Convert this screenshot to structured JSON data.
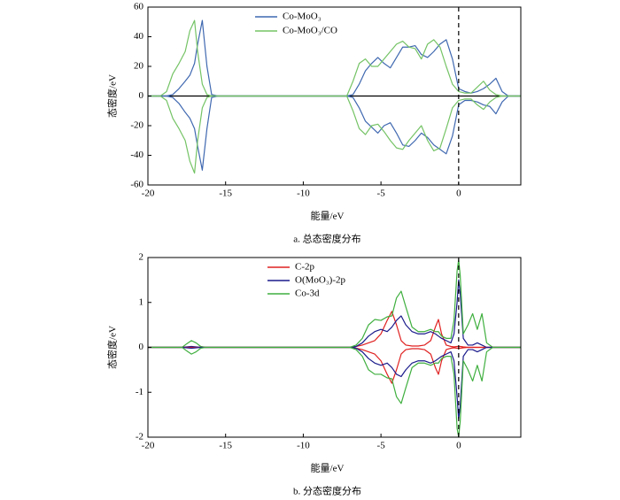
{
  "chart_data": [
    {
      "type": "line",
      "xlabel": "能量/eV",
      "ylabel": "态密度/eV",
      "caption": "a. 总态密度分布",
      "xlim": [
        -20,
        4
      ],
      "ylim": [
        -60,
        60
      ],
      "xticks": [
        -20,
        -15,
        -10,
        -5,
        0
      ],
      "yticks": [
        -60,
        -40,
        -20,
        0,
        20,
        40,
        60
      ],
      "vline": 0,
      "hline": 0,
      "x": [
        -20,
        -19.2,
        -18.8,
        -18.4,
        -18,
        -17.6,
        -17.3,
        -17,
        -16.8,
        -16.5,
        -16.2,
        -15.9,
        -15.5,
        -8,
        -7.2,
        -6.8,
        -6.4,
        -6,
        -5.6,
        -5.2,
        -4.8,
        -4.4,
        -4,
        -3.6,
        -3.2,
        -2.8,
        -2.4,
        -2,
        -1.6,
        -1.2,
        -0.8,
        -0.4,
        0,
        0.4,
        0.8,
        1.2,
        1.6,
        2,
        2.4,
        2.8,
        3.2,
        4
      ],
      "series": [
        {
          "name": "Co-MoO₃",
          "color": "#3f68b0",
          "values": [
            0,
            0,
            0,
            1,
            5,
            10,
            14,
            22,
            35,
            51,
            20,
            1,
            0,
            0,
            0,
            1,
            8,
            17,
            22,
            26,
            22,
            19,
            26,
            33,
            33,
            34,
            28,
            26,
            30,
            35,
            38,
            25,
            5,
            3,
            2,
            3,
            5,
            8,
            12,
            3,
            0,
            0
          ],
          "values_down": [
            0,
            0,
            0,
            -1,
            -5,
            -11,
            -15,
            -22,
            -34,
            -50,
            -22,
            -1,
            0,
            0,
            0,
            -1,
            -8,
            -17,
            -21,
            -25,
            -20,
            -18,
            -25,
            -33,
            -34,
            -30,
            -25,
            -28,
            -33,
            -36,
            -39,
            -27,
            -6,
            -3,
            -3,
            -4,
            -6,
            -7,
            -12,
            -4,
            0,
            0
          ]
        },
        {
          "name": "Co-MoO₃/CO",
          "color": "#74c365",
          "values": [
            0,
            0,
            3,
            15,
            22,
            30,
            44,
            51,
            30,
            8,
            1,
            0,
            0,
            0,
            0,
            10,
            22,
            25,
            20,
            20,
            25,
            30,
            35,
            37,
            33,
            32,
            25,
            35,
            38,
            33,
            20,
            8,
            3,
            2,
            2,
            6,
            10,
            4,
            1,
            0,
            0,
            0
          ],
          "values_down": [
            0,
            0,
            -3,
            -15,
            -22,
            -30,
            -44,
            -52,
            -30,
            -8,
            -1,
            0,
            0,
            0,
            0,
            -10,
            -22,
            -26,
            -20,
            -19,
            -24,
            -30,
            -35,
            -36,
            -30,
            -25,
            -20,
            -30,
            -37,
            -35,
            -22,
            -8,
            -3,
            -2,
            -2,
            -6,
            -9,
            -4,
            -1,
            0,
            0,
            0
          ]
        }
      ]
    },
    {
      "type": "line",
      "xlabel": "能量/eV",
      "ylabel": "态密度/eV",
      "caption": "b. 分态密度分布",
      "xlim": [
        -20,
        4
      ],
      "ylim": [
        -2,
        2
      ],
      "xticks": [
        -20,
        -15,
        -10,
        -5,
        0
      ],
      "yticks": [
        -2,
        -1,
        0,
        1,
        2
      ],
      "vline": 0,
      "x": [
        -20,
        -17.8,
        -17.5,
        -17.2,
        -16.9,
        -16.6,
        -16.3,
        -8,
        -7,
        -6.6,
        -6.2,
        -5.8,
        -5.4,
        -5,
        -4.6,
        -4.3,
        -4,
        -3.7,
        -3.4,
        -3,
        -2.6,
        -2.2,
        -1.8,
        -1.5,
        -1.3,
        -1.1,
        -0.8,
        -0.5,
        -0.3,
        -0.1,
        0,
        0.1,
        0.3,
        0.6,
        0.9,
        1.2,
        1.5,
        1.8,
        2.2,
        4
      ],
      "series": [
        {
          "name": "C-2p",
          "color": "#e02020",
          "values": [
            0,
            0,
            0,
            0,
            0,
            0,
            0,
            0,
            0,
            0.02,
            0.05,
            0.1,
            0.15,
            0.3,
            0.6,
            0.8,
            0.5,
            0.15,
            0.05,
            0.03,
            0.03,
            0.05,
            0.15,
            0.45,
            0.62,
            0.3,
            0.05,
            0.02,
            0.01,
            0.02,
            0.02,
            0.02,
            0.01,
            0,
            0,
            0,
            0,
            0,
            0,
            0
          ],
          "values_down": [
            0,
            0,
            0,
            0,
            0,
            0,
            0,
            0,
            0,
            -0.02,
            -0.05,
            -0.1,
            -0.15,
            -0.3,
            -0.6,
            -0.8,
            -0.5,
            -0.15,
            -0.05,
            -0.03,
            -0.03,
            -0.05,
            -0.15,
            -0.45,
            -0.6,
            -0.3,
            -0.05,
            -0.02,
            -0.01,
            -0.02,
            -0.02,
            -0.02,
            -0.01,
            0,
            0,
            0,
            0,
            0,
            0,
            0
          ]
        },
        {
          "name": "O(MoO₃)-2p",
          "color": "#1a1a8c",
          "values": [
            0,
            0,
            0.01,
            0.02,
            0.01,
            0,
            0,
            0,
            0,
            0.02,
            0.1,
            0.25,
            0.35,
            0.4,
            0.35,
            0.45,
            0.6,
            0.7,
            0.5,
            0.35,
            0.3,
            0.3,
            0.35,
            0.3,
            0.25,
            0.2,
            0.15,
            0.1,
            0.3,
            1.0,
            1.5,
            1.2,
            0.2,
            0.05,
            0.05,
            0.1,
            0.05,
            0,
            0,
            0
          ],
          "values_down": [
            0,
            0,
            -0.01,
            -0.02,
            -0.01,
            0,
            0,
            0,
            0,
            -0.02,
            -0.1,
            -0.25,
            -0.35,
            -0.4,
            -0.35,
            -0.45,
            -0.6,
            -0.65,
            -0.5,
            -0.35,
            -0.3,
            -0.3,
            -0.35,
            -0.3,
            -0.25,
            -0.2,
            -0.15,
            -0.1,
            -0.3,
            -1.1,
            -1.6,
            -1.3,
            -0.2,
            -0.05,
            -0.05,
            -0.1,
            -0.05,
            0,
            0,
            0
          ]
        },
        {
          "name": "Co-3d",
          "color": "#3faf3f",
          "values": [
            0,
            0,
            0.08,
            0.15,
            0.1,
            0.02,
            0,
            0,
            0,
            0.05,
            0.2,
            0.5,
            0.62,
            0.6,
            0.68,
            0.7,
            1.1,
            1.25,
            0.9,
            0.45,
            0.35,
            0.35,
            0.4,
            0.35,
            0.35,
            0.25,
            0.2,
            0.2,
            0.6,
            1.7,
            1.95,
            1.6,
            0.3,
            0.5,
            0.75,
            0.4,
            0.75,
            0.1,
            0,
            0
          ],
          "values_down": [
            0,
            0,
            -0.08,
            -0.15,
            -0.1,
            -0.02,
            0,
            0,
            0,
            -0.05,
            -0.2,
            -0.5,
            -0.6,
            -0.6,
            -0.68,
            -0.7,
            -1.1,
            -1.25,
            -0.9,
            -0.45,
            -0.35,
            -0.35,
            -0.4,
            -0.35,
            -0.35,
            -0.25,
            -0.2,
            -0.2,
            -0.6,
            -1.8,
            -2.0,
            -1.65,
            -0.3,
            -0.5,
            -0.75,
            -0.4,
            -0.75,
            -0.1,
            0,
            0
          ]
        }
      ]
    }
  ]
}
